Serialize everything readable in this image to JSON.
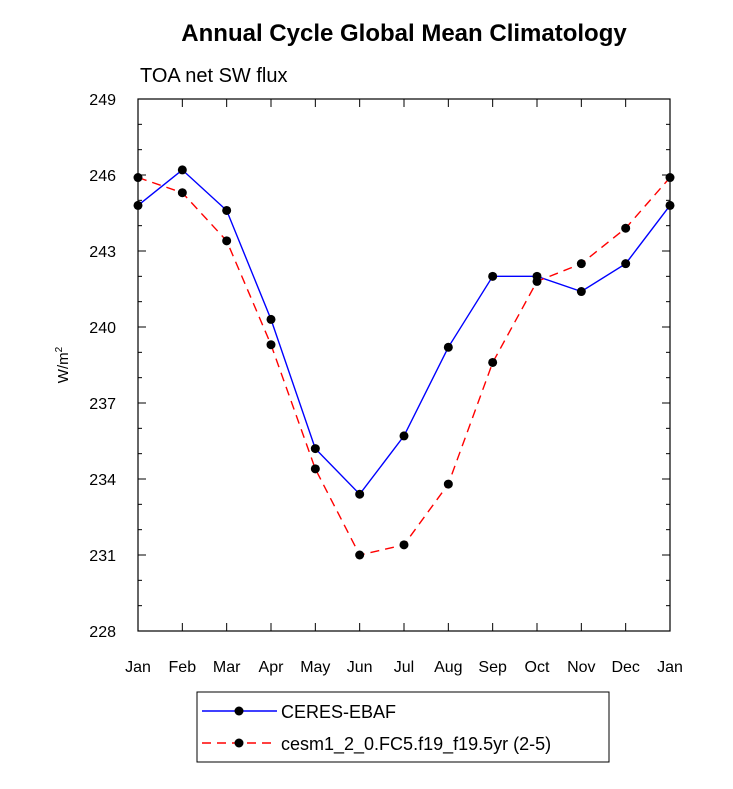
{
  "chart_data": {
    "type": "line",
    "title": "Annual Cycle Global Mean Climatology",
    "subtitle": "TOA net SW flux",
    "xlabel": "",
    "ylabel_base": "W/m",
    "ylabel_sup": "2",
    "categories": [
      "Jan",
      "Feb",
      "Mar",
      "Apr",
      "May",
      "Jun",
      "Jul",
      "Aug",
      "Sep",
      "Oct",
      "Nov",
      "Dec",
      "Jan"
    ],
    "yticks": [
      "228",
      "231",
      "234",
      "237",
      "240",
      "243",
      "246",
      "249"
    ],
    "ylim": [
      228,
      249
    ],
    "grid": false,
    "legend_position": "bottom-center",
    "series": [
      {
        "name": "CERES-EBAF",
        "color": "#0000ff",
        "dash": "solid",
        "marker": "filled-circle",
        "values": [
          244.8,
          246.2,
          244.6,
          240.3,
          235.2,
          233.4,
          235.7,
          239.2,
          242.0,
          242.0,
          241.4,
          242.5,
          244.8
        ]
      },
      {
        "name": "cesm1_2_0.FC5.f19_f19.5yr (2-5)",
        "color": "#ff0000",
        "dash": "dashed",
        "marker": "filled-circle",
        "values": [
          245.9,
          245.3,
          243.4,
          239.3,
          234.4,
          231.0,
          231.4,
          233.8,
          238.6,
          241.8,
          242.5,
          243.9,
          245.9
        ]
      }
    ]
  }
}
